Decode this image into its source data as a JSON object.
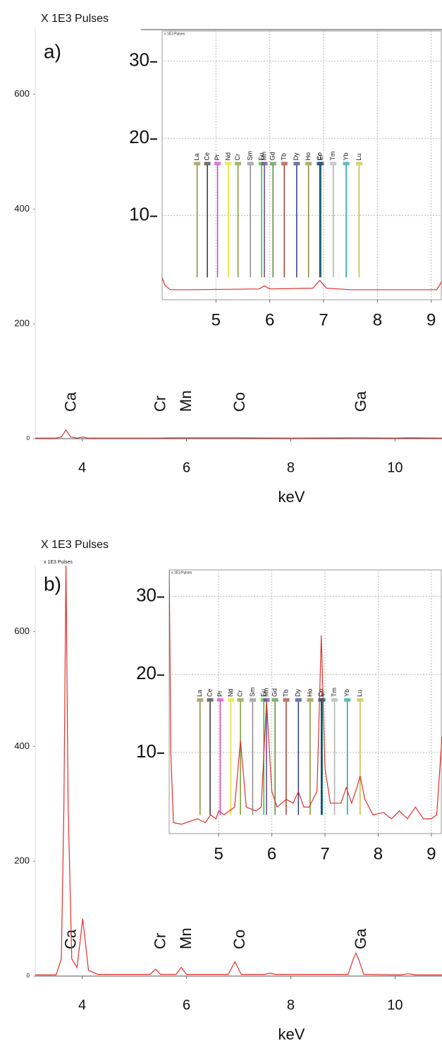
{
  "chart_data": [
    {
      "type": "line",
      "title": "X 1E3 Pulses",
      "panel_label": "a)",
      "xlabel": "keV",
      "color": "#e0302a",
      "x": [
        3.1,
        3.5,
        3.6,
        3.69,
        3.78,
        3.9,
        4.01,
        4.1,
        4.3,
        5.41,
        5.9,
        6.93,
        8,
        9.25,
        10,
        10.26,
        10.9
      ],
      "values": [
        1,
        1,
        3,
        15,
        3,
        1,
        3,
        1,
        1,
        1,
        1.5,
        1.5,
        1,
        1.5,
        1,
        1.5,
        1
      ],
      "xlim": [
        3.1,
        10.9
      ],
      "xticks": [
        4,
        6,
        8,
        10
      ],
      "ylim": [
        0,
        715
      ],
      "yticks": [
        0,
        200,
        400,
        600
      ],
      "grid": false,
      "annotations": [
        {
          "text": "Ca",
          "x": 3.69
        },
        {
          "text": "Cr",
          "x": 5.41
        },
        {
          "text": "Mn",
          "x": 5.9
        },
        {
          "text": "Co",
          "x": 6.93
        },
        {
          "text": "Ga",
          "x": 9.25
        }
      ]
    },
    {
      "type": "line",
      "title": "x 1E3 Pulses",
      "color": "#e0302a",
      "x": [
        4.0,
        4.05,
        4.15,
        4.6,
        5.8,
        5.9,
        6.0,
        6.8,
        6.93,
        7.05,
        7.5,
        9.1,
        9.2
      ],
      "values": [
        2,
        1,
        0.4,
        0.4,
        0.5,
        0.9,
        0.5,
        0.6,
        1.6,
        0.6,
        0.4,
        0.4,
        1.5
      ],
      "xlim": [
        4.0,
        9.2
      ],
      "xticks": [
        5,
        6,
        7,
        8,
        9
      ],
      "ylim": [
        -0.9,
        33.9
      ],
      "yticks": [
        10,
        20,
        30
      ],
      "grid": true,
      "markers": [
        {
          "label": "La",
          "x": 4.65,
          "color": "#8a8a3a"
        },
        {
          "label": "Ce",
          "x": 4.84,
          "color": "#333333"
        },
        {
          "label": "Pr",
          "x": 5.03,
          "color": "#d040d0"
        },
        {
          "label": "Nd",
          "x": 5.23,
          "color": "#e8e020"
        },
        {
          "label": "Cr",
          "x": 5.41,
          "color": "#7a9a30"
        },
        {
          "label": "Sm",
          "x": 5.64,
          "color": "#8a8a8a"
        },
        {
          "label": "Eu",
          "x": 5.85,
          "color": "#30c030"
        },
        {
          "label": "Mn",
          "x": 5.9,
          "color": "#6a3aa0"
        },
        {
          "label": "Gd",
          "x": 6.06,
          "color": "#5a8a3a"
        },
        {
          "label": "Tb",
          "x": 6.27,
          "color": "#a04030"
        },
        {
          "label": "Dy",
          "x": 6.5,
          "color": "#303a8a"
        },
        {
          "label": "Ho",
          "x": 6.72,
          "color": "#8a8a30"
        },
        {
          "label": "Er",
          "x": 6.95,
          "color": "#208080"
        },
        {
          "label": "Co",
          "x": 6.93,
          "color": "#1a3a6a"
        },
        {
          "label": "Tm",
          "x": 7.18,
          "color": "#b0b0b0"
        },
        {
          "label": "Yb",
          "x": 7.42,
          "color": "#20a0a0"
        },
        {
          "label": "Lu",
          "x": 7.66,
          "color": "#c0c040"
        }
      ]
    },
    {
      "type": "line",
      "title": "X 1E3 Pulses",
      "subtitle": "x 1E3 Pulses",
      "panel_label": "b)",
      "xlabel": "keV",
      "color": "#e0302a",
      "x": [
        3.1,
        3.5,
        3.6,
        3.65,
        3.69,
        3.73,
        3.8,
        3.9,
        3.96,
        4.01,
        4.06,
        4.12,
        4.3,
        5.3,
        5.41,
        5.5,
        5.8,
        5.9,
        6.0,
        6.8,
        6.93,
        7.05,
        7.5,
        7.6,
        7.7,
        9.1,
        9.2,
        9.25,
        9.3,
        9.4,
        10.1,
        10.26,
        10.4,
        10.9
      ],
      "values": [
        2,
        2,
        30,
        300,
        720,
        300,
        30,
        15,
        60,
        100,
        60,
        10,
        3,
        3,
        12,
        3,
        3,
        15,
        3,
        3,
        25,
        3,
        3,
        5,
        3,
        3,
        30,
        40,
        30,
        3,
        2,
        4,
        2,
        2
      ],
      "xlim": [
        3.1,
        10.9
      ],
      "xticks": [
        4,
        6,
        8,
        10
      ],
      "ylim": [
        0,
        715
      ],
      "yticks": [
        0,
        200,
        400,
        600
      ],
      "grid": false,
      "annotations": [
        {
          "text": "Ca",
          "x": 3.69
        },
        {
          "text": "Cr",
          "x": 5.41
        },
        {
          "text": "Mn",
          "x": 5.9
        },
        {
          "text": "Co",
          "x": 6.93
        },
        {
          "text": "Ga",
          "x": 9.25
        }
      ]
    },
    {
      "type": "line",
      "title": "x 1E3 Pulses",
      "color": "#e0302a",
      "x": [
        4.07,
        4.1,
        4.15,
        4.3,
        4.6,
        4.75,
        4.85,
        4.95,
        5.0,
        5.1,
        5.3,
        5.41,
        5.52,
        5.7,
        5.8,
        5.9,
        6.0,
        6.1,
        6.27,
        6.4,
        6.5,
        6.6,
        6.7,
        6.85,
        6.93,
        7.0,
        7.1,
        7.3,
        7.4,
        7.5,
        7.6,
        7.66,
        7.75,
        7.9,
        8.1,
        8.25,
        8.4,
        8.55,
        8.7,
        8.85,
        9.0,
        9.1,
        9.2
      ],
      "values": [
        34,
        10,
        1,
        0.8,
        1.5,
        1,
        2,
        1.5,
        2.5,
        2,
        3,
        11.5,
        3,
        2.5,
        3,
        16.5,
        5,
        3,
        4,
        3.5,
        5,
        3,
        3,
        5,
        25,
        8,
        3.5,
        3.5,
        5.5,
        3.5,
        5.5,
        7,
        4,
        2,
        2.3,
        1.5,
        2.5,
        1.5,
        3,
        1.5,
        1.5,
        2,
        12
      ],
      "xlim": [
        4.07,
        9.2
      ],
      "xticks": [
        5,
        6,
        7,
        8,
        9
      ],
      "ylim": [
        -0.4,
        33.4
      ],
      "yticks": [
        10,
        20,
        30
      ],
      "grid": true,
      "markers": [
        {
          "label": "La",
          "x": 4.65,
          "color": "#8a8a3a"
        },
        {
          "label": "Ce",
          "x": 4.84,
          "color": "#333333"
        },
        {
          "label": "Pr",
          "x": 5.03,
          "color": "#d040d0"
        },
        {
          "label": "Nd",
          "x": 5.23,
          "color": "#e8e020"
        },
        {
          "label": "Cr",
          "x": 5.41,
          "color": "#7a9a30"
        },
        {
          "label": "Sm",
          "x": 5.64,
          "color": "#8a8a8a"
        },
        {
          "label": "Eu",
          "x": 5.85,
          "color": "#30c030"
        },
        {
          "label": "Mn",
          "x": 5.9,
          "color": "#6a3aa0"
        },
        {
          "label": "Gd",
          "x": 6.06,
          "color": "#5a8a3a"
        },
        {
          "label": "Tb",
          "x": 6.27,
          "color": "#a04030"
        },
        {
          "label": "Dy",
          "x": 6.5,
          "color": "#303a8a"
        },
        {
          "label": "Ho",
          "x": 6.72,
          "color": "#8a8a30"
        },
        {
          "label": "Er",
          "x": 6.95,
          "color": "#208080"
        },
        {
          "label": "Co",
          "x": 6.93,
          "color": "#1a3a6a"
        },
        {
          "label": "Tm",
          "x": 7.18,
          "color": "#b0b0b0"
        },
        {
          "label": "Yb",
          "x": 7.42,
          "color": "#20a0a0"
        },
        {
          "label": "Lu",
          "x": 7.66,
          "color": "#c0c040"
        }
      ]
    }
  ]
}
